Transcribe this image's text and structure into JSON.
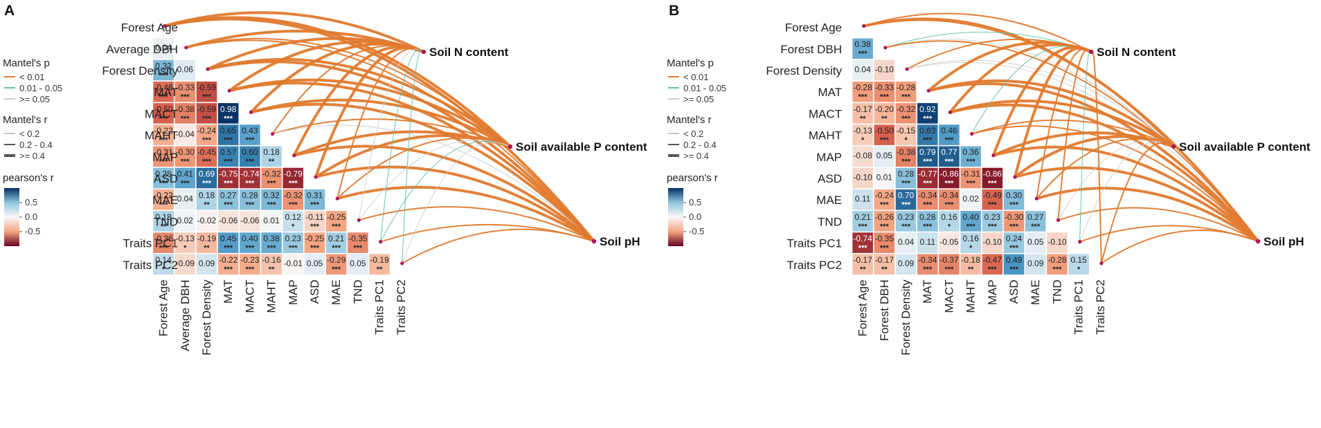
{
  "colors": {
    "neg": "#67001f",
    "mid": "#f7f7f7",
    "pos": "#053061",
    "p_lt_001": "#e07a2e",
    "p_001_005": "#5fc0a9",
    "p_ge_005": "#cfcfcf",
    "node": "#b0145a"
  },
  "panels": [
    {
      "letter": "A",
      "variables": [
        "Forest Age",
        "Average DBH",
        "Forest Density",
        "MAT",
        "MACT",
        "MAHT",
        "MAP",
        "ASD",
        "MAE",
        "TND",
        "Traits PC1",
        "Traits PC2"
      ],
      "cells": [
        [],
        [
          [
            "0.04",
            ""
          ]
        ],
        [
          [
            "0.32",
            "***"
          ],
          [
            "0.06",
            ""
          ]
        ],
        [
          [
            "-0.46",
            "***"
          ],
          [
            "-0.33",
            "***"
          ],
          [
            "-0.59",
            "***"
          ]
        ],
        [
          [
            "-0.50",
            "***"
          ],
          [
            "-0.38",
            "***"
          ],
          [
            "-0.59",
            "***"
          ],
          [
            "0.98",
            "***"
          ]
        ],
        [
          [
            "-0.22",
            "***"
          ],
          [
            "-0.04",
            ""
          ],
          [
            "-0.24",
            "***"
          ],
          [
            "0.65",
            "***"
          ],
          [
            "0.43",
            "***"
          ]
        ],
        [
          [
            "-0.31",
            "***"
          ],
          [
            "-0.30",
            "***"
          ],
          [
            "-0.45",
            "***"
          ],
          [
            "0.57",
            "***"
          ],
          [
            "0.60",
            "***"
          ],
          [
            "0.18",
            "**"
          ]
        ],
        [
          [
            "0.28",
            "***"
          ],
          [
            "0.41",
            "***"
          ],
          [
            "0.69",
            "***"
          ],
          [
            "-0.75",
            "***"
          ],
          [
            "-0.74",
            "***"
          ],
          [
            "-0.32",
            "***"
          ],
          [
            "-0.79",
            "***"
          ]
        ],
        [
          [
            "-0.22",
            "***"
          ],
          [
            "0.04",
            ""
          ],
          [
            "0.18",
            "**"
          ],
          [
            "0.27",
            "***"
          ],
          [
            "0.28",
            "***"
          ],
          [
            "0.32",
            "***"
          ],
          [
            "-0.32",
            "***"
          ],
          [
            "0.31",
            "***"
          ]
        ],
        [
          [
            "0.18",
            "**"
          ],
          [
            "0.02",
            ""
          ],
          [
            "-0.02",
            ""
          ],
          [
            "-0.06",
            ""
          ],
          [
            "-0.06",
            ""
          ],
          [
            "0.01",
            ""
          ],
          [
            "0.12",
            "*"
          ],
          [
            "-0.11",
            "***"
          ],
          [
            "-0.25",
            "***"
          ]
        ],
        [
          [
            "-0.36",
            "***"
          ],
          [
            "-0.13",
            "*"
          ],
          [
            "-0.19",
            "**"
          ],
          [
            "0.45",
            "***"
          ],
          [
            "0.40",
            "***"
          ],
          [
            "0.38",
            "***"
          ],
          [
            "0.23",
            "***"
          ],
          [
            "-0.25",
            "***"
          ],
          [
            "0.21",
            "***"
          ],
          [
            "-0.35",
            "***"
          ]
        ],
        [
          [
            "0.14",
            "*"
          ],
          [
            "-0.09",
            ""
          ],
          [
            "0.09",
            ""
          ],
          [
            "-0.22",
            "***"
          ],
          [
            "-0.23",
            "***"
          ],
          [
            "-0.16",
            "**"
          ],
          [
            "-0.01",
            ""
          ],
          [
            "0.05",
            ""
          ],
          [
            "-0.29",
            "***"
          ],
          [
            "0.05",
            ""
          ],
          [
            "-0.19",
            "**"
          ]
        ]
      ],
      "targets": [
        "Soil N content",
        "Soil available P content",
        "Soil pH"
      ],
      "links": [
        [
          [
            1,
            2
          ],
          [
            1,
            2
          ],
          [
            1,
            2
          ]
        ],
        [
          [
            1,
            2
          ],
          [
            1,
            1
          ],
          [
            1,
            1
          ]
        ],
        [
          [
            1,
            2
          ],
          [
            1,
            2
          ],
          [
            1,
            2
          ]
        ],
        [
          [
            1,
            2
          ],
          [
            1,
            2
          ],
          [
            1,
            2
          ]
        ],
        [
          [
            1,
            2
          ],
          [
            1,
            2
          ],
          [
            1,
            2
          ]
        ],
        [
          [
            1,
            1
          ],
          [
            1,
            1
          ],
          [
            3,
            0
          ]
        ],
        [
          [
            1,
            2
          ],
          [
            1,
            2
          ],
          [
            1,
            2
          ]
        ],
        [
          [
            1,
            2
          ],
          [
            1,
            2
          ],
          [
            1,
            2
          ]
        ],
        [
          [
            1,
            1
          ],
          [
            1,
            1
          ],
          [
            1,
            2
          ]
        ],
        [
          [
            3,
            0
          ],
          [
            3,
            0
          ],
          [
            1,
            1
          ]
        ],
        [
          [
            2,
            0
          ],
          [
            2,
            0
          ],
          [
            1,
            1
          ]
        ],
        [
          [
            2,
            0
          ],
          [
            3,
            0
          ],
          [
            1,
            1
          ]
        ]
      ]
    },
    {
      "letter": "B",
      "variables": [
        "Forest Age",
        "Forest DBH",
        "Forest Density",
        "MAT",
        "MACT",
        "MAHT",
        "MAP",
        "ASD",
        "MAE",
        "TND",
        "Traits PC1",
        "Traits PC2"
      ],
      "cells": [
        [],
        [
          [
            "0.38",
            "***"
          ]
        ],
        [
          [
            "0.04",
            ""
          ],
          [
            "-0.10",
            ""
          ]
        ],
        [
          [
            "-0.28",
            "***"
          ],
          [
            "-0.33",
            "***"
          ],
          [
            "-0.28",
            "***"
          ]
        ],
        [
          [
            "-0.17",
            "**"
          ],
          [
            "-0.20",
            "**"
          ],
          [
            "-0.32",
            "***"
          ],
          [
            "0.92",
            "***"
          ]
        ],
        [
          [
            "-0.13",
            "*"
          ],
          [
            "-0.50",
            "***"
          ],
          [
            "-0.15",
            "*"
          ],
          [
            "0.63",
            "***"
          ],
          [
            "0.46",
            "***"
          ]
        ],
        [
          [
            "-0.08",
            ""
          ],
          [
            "0.05",
            ""
          ],
          [
            "-0.38",
            "***"
          ],
          [
            "0.79",
            "***"
          ],
          [
            "0.77",
            "***"
          ],
          [
            "0.36",
            "***"
          ]
        ],
        [
          [
            "-0.10",
            ""
          ],
          [
            "0.01",
            ""
          ],
          [
            "0.28",
            "***"
          ],
          [
            "-0.77",
            "***"
          ],
          [
            "-0.86",
            "***"
          ],
          [
            "-0.31",
            "***"
          ],
          [
            "-0.86",
            "***"
          ]
        ],
        [
          [
            "0.11",
            ""
          ],
          [
            "-0.24",
            "***"
          ],
          [
            "0.70",
            "***"
          ],
          [
            "-0.34",
            "***"
          ],
          [
            "-0.34",
            "***"
          ],
          [
            "0.02",
            ""
          ],
          [
            "-0.49",
            "***"
          ],
          [
            "0.30",
            "***"
          ]
        ],
        [
          [
            "0.21",
            "***"
          ],
          [
            "-0.26",
            "***"
          ],
          [
            "0.23",
            "***"
          ],
          [
            "0.28",
            "***"
          ],
          [
            "0.16",
            "*"
          ],
          [
            "0.40",
            "***"
          ],
          [
            "0.23",
            "***"
          ],
          [
            "-0.30",
            "***"
          ],
          [
            "0.27",
            "***"
          ]
        ],
        [
          [
            "-0.74",
            "***"
          ],
          [
            "-0.35",
            "***"
          ],
          [
            "0.04",
            ""
          ],
          [
            "0.11",
            ""
          ],
          [
            "-0.05",
            ""
          ],
          [
            "0.16",
            "*"
          ],
          [
            "-0.10",
            ""
          ],
          [
            "0.24",
            "***"
          ],
          [
            "0.05",
            ""
          ],
          [
            "-0.10",
            ""
          ]
        ],
        [
          [
            "-0.17",
            "**"
          ],
          [
            "-0.17",
            "**"
          ],
          [
            "0.09",
            ""
          ],
          [
            "-0.34",
            "***"
          ],
          [
            "-0.37",
            "***"
          ],
          [
            "-0.18",
            "**"
          ],
          [
            "-0.47",
            "***"
          ],
          [
            "0.49",
            "***"
          ],
          [
            "0.09",
            ""
          ],
          [
            "-0.28",
            "***"
          ],
          [
            "0.15",
            "*"
          ]
        ]
      ],
      "targets": [
        "Soil N content",
        "Soil available P content",
        "Soil pH"
      ],
      "links": [
        [
          [
            1,
            1
          ],
          [
            1,
            1
          ],
          [
            1,
            2
          ]
        ],
        [
          [
            2,
            0
          ],
          [
            3,
            0
          ],
          [
            1,
            1
          ]
        ],
        [
          [
            1,
            1
          ],
          [
            3,
            0
          ],
          [
            3,
            0
          ]
        ],
        [
          [
            1,
            2
          ],
          [
            1,
            2
          ],
          [
            1,
            2
          ]
        ],
        [
          [
            1,
            2
          ],
          [
            1,
            2
          ],
          [
            1,
            2
          ]
        ],
        [
          [
            2,
            0
          ],
          [
            1,
            1
          ],
          [
            1,
            1
          ]
        ],
        [
          [
            1,
            2
          ],
          [
            1,
            2
          ],
          [
            1,
            2
          ]
        ],
        [
          [
            1,
            2
          ],
          [
            1,
            2
          ],
          [
            1,
            2
          ]
        ],
        [
          [
            1,
            1
          ],
          [
            1,
            1
          ],
          [
            1,
            2
          ]
        ],
        [
          [
            1,
            1
          ],
          [
            3,
            0
          ],
          [
            1,
            1
          ]
        ],
        [
          [
            2,
            0
          ],
          [
            3,
            0
          ],
          [
            1,
            1
          ]
        ],
        [
          [
            1,
            1
          ],
          [
            1,
            1
          ],
          [
            1,
            1
          ]
        ]
      ]
    }
  ],
  "legend": {
    "mantel_p_title": "Mantel's p",
    "mantel_p_items": [
      "< 0.01",
      "0.01 - 0.05",
      ">= 0.05"
    ],
    "mantel_r_title": "Mantel's r",
    "mantel_r_items": [
      "< 0.2",
      "0.2 - 0.4",
      ">= 0.4"
    ],
    "pearson_title": "pearson's r",
    "pearson_ticks": [
      "0.5",
      "0.0",
      "-0.5"
    ],
    "pearson_tick_values": [
      0.5,
      0.0,
      -0.5
    ]
  },
  "chart_data": [
    {
      "type": "heatmap",
      "title": "A",
      "variables": [
        "Forest Age",
        "Average DBH",
        "Forest Density",
        "MAT",
        "MACT",
        "MAHT",
        "MAP",
        "ASD",
        "MAE",
        "TND",
        "Traits PC1",
        "Traits PC2"
      ],
      "value_range": [
        -1,
        1
      ],
      "note": "Lower-triangle Pearson correlation matrix with Mantel test links to Soil N content, Soil available P content and Soil pH"
    },
    {
      "type": "heatmap",
      "title": "B",
      "variables": [
        "Forest Age",
        "Forest DBH",
        "Forest Density",
        "MAT",
        "MACT",
        "MAHT",
        "MAP",
        "ASD",
        "MAE",
        "TND",
        "Traits PC1",
        "Traits PC2"
      ],
      "value_range": [
        -1,
        1
      ],
      "note": "Lower-triangle Pearson correlation matrix with Mantel test links to Soil N content, Soil available P content and Soil pH"
    }
  ]
}
